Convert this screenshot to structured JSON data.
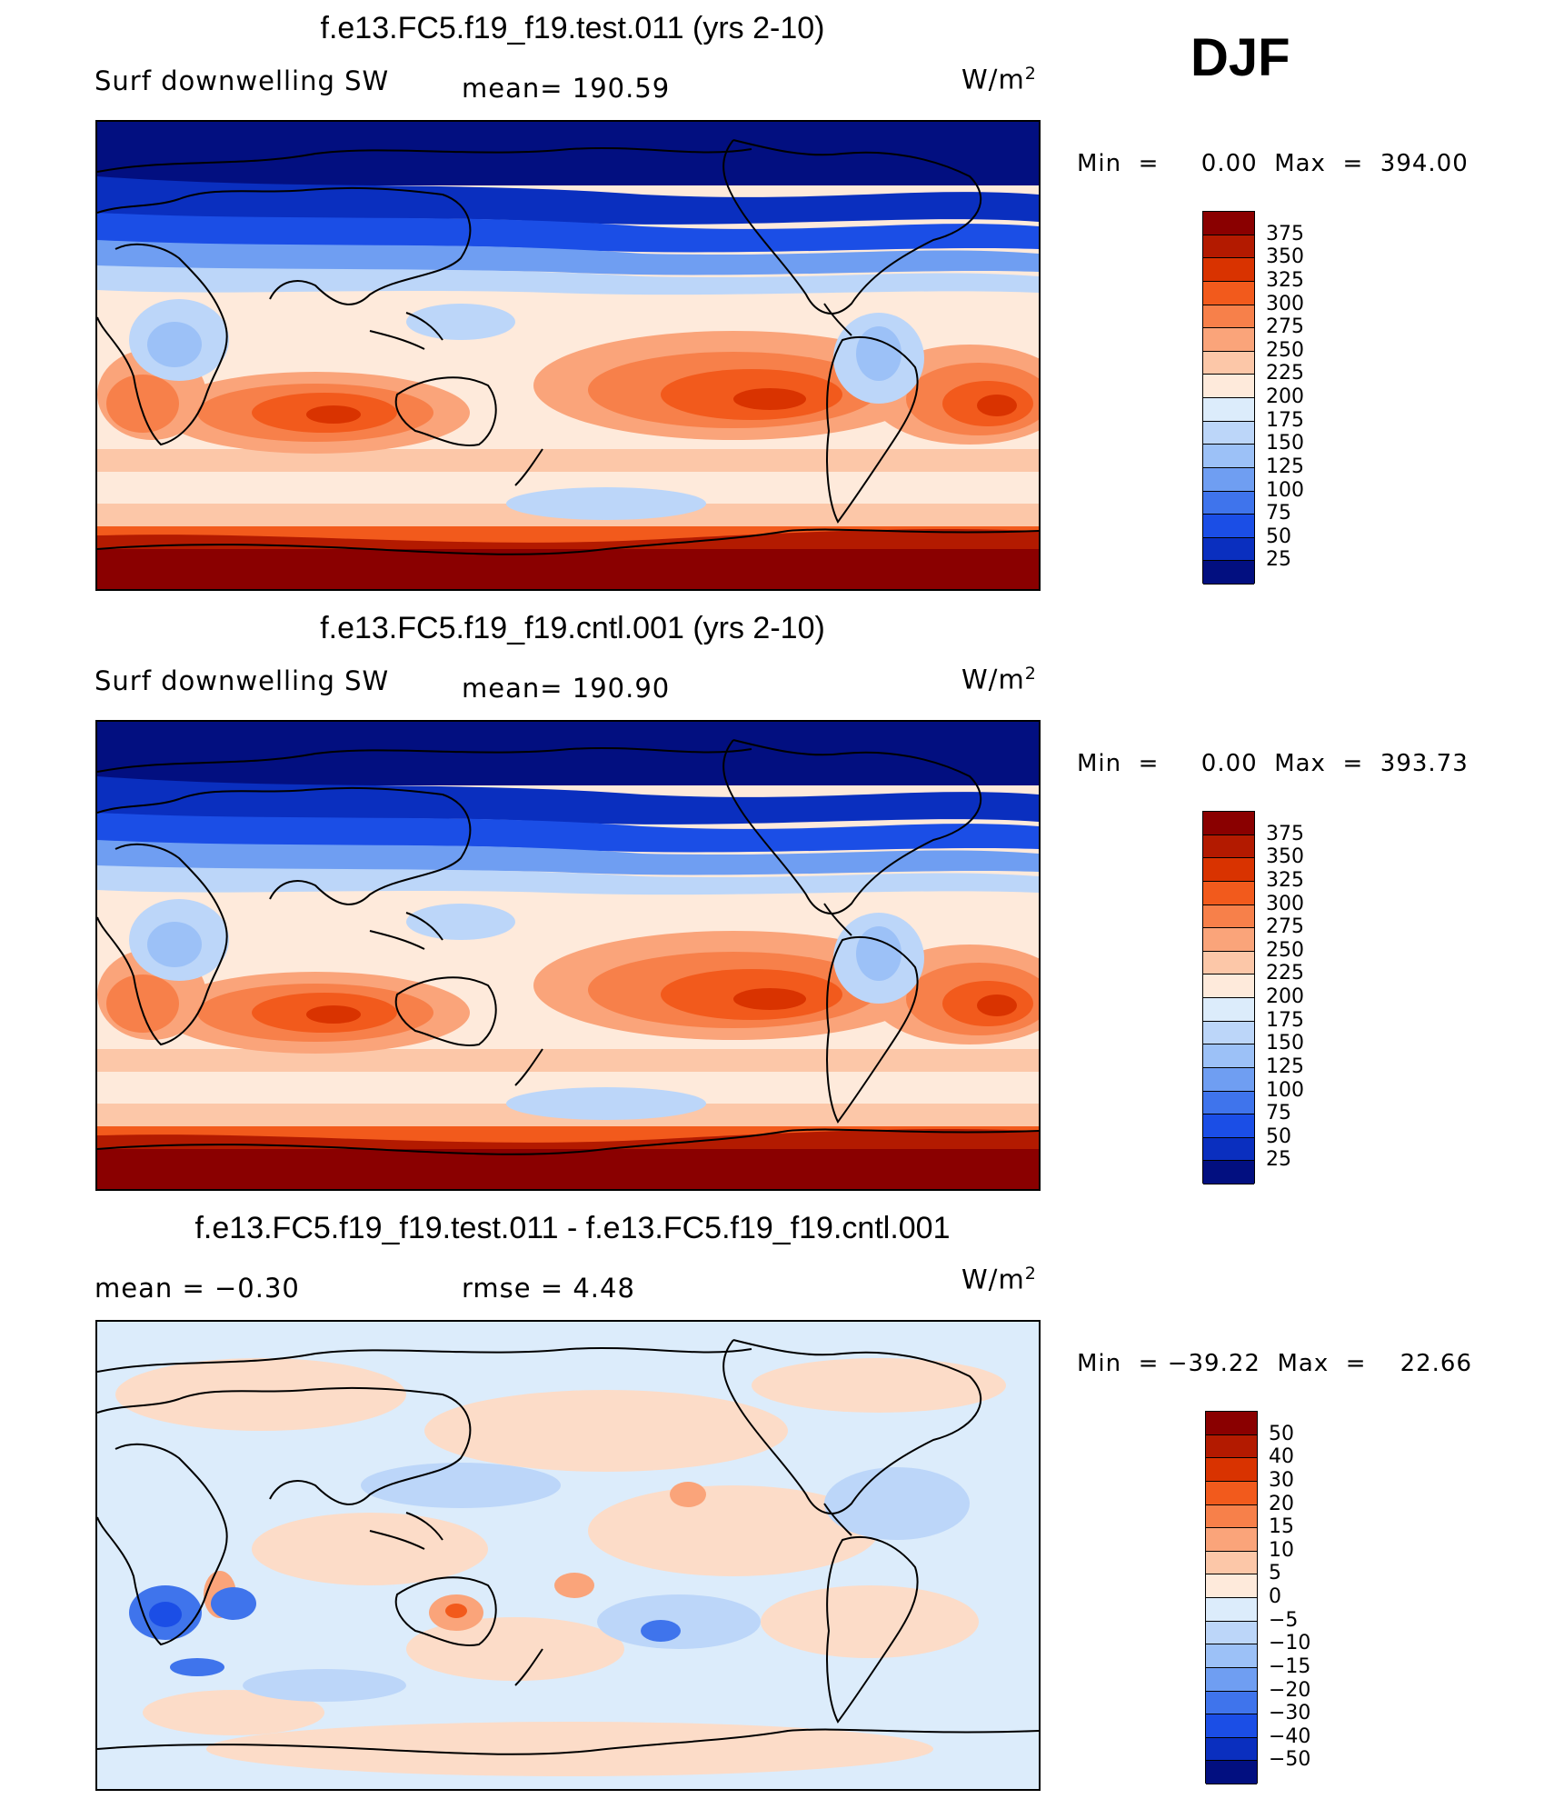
{
  "season": "DJF",
  "units": {
    "base": "W/m",
    "sup": "2"
  },
  "panels": [
    {
      "title": "f.e13.FC5.f19_f19.test.011 (yrs 2-10)",
      "left_label": "Surf  downwelling  SW",
      "mid_label": "mean=  190.59",
      "minmax": "Min  =     0.00  Max  =  394.00"
    },
    {
      "title": "f.e13.FC5.f19_f19.cntl.001 (yrs 2-10)",
      "left_label": "Surf  downwelling  SW",
      "mid_label": "mean=  190.90",
      "minmax": "Min  =     0.00  Max  =  393.73"
    },
    {
      "title": "f.e13.FC5.f19_f19.test.011 - f.e13.FC5.f19_f19.cntl.001",
      "left_label": "mean  =    −0.30",
      "mid_label": "rmse  =     4.48",
      "minmax": "Min  = −39.22  Max  =    22.66"
    }
  ],
  "colorbars": [
    {
      "labels": [
        "375",
        "350",
        "325",
        "300",
        "275",
        "250",
        "225",
        "200",
        "175",
        "150",
        "125",
        "100",
        "75",
        "50",
        "25"
      ],
      "colors": [
        "#8a0000",
        "#b31a00",
        "#d93300",
        "#f25a1c",
        "#f7804a",
        "#faa47a",
        "#fcc7a8",
        "#feeadb",
        "#dcecfb",
        "#bcd6f9",
        "#9cc1f7",
        "#6f9ef2",
        "#3f74ec",
        "#1b4ee6",
        "#0a2fbf",
        "#020f80"
      ]
    },
    {
      "labels": [
        "375",
        "350",
        "325",
        "300",
        "275",
        "250",
        "225",
        "200",
        "175",
        "150",
        "125",
        "100",
        "75",
        "50",
        "25"
      ],
      "colors": [
        "#8a0000",
        "#b31a00",
        "#d93300",
        "#f25a1c",
        "#f7804a",
        "#faa47a",
        "#fcc7a8",
        "#feeadb",
        "#dcecfb",
        "#bcd6f9",
        "#9cc1f7",
        "#6f9ef2",
        "#3f74ec",
        "#1b4ee6",
        "#0a2fbf",
        "#020f80"
      ]
    },
    {
      "labels": [
        "50",
        "40",
        "30",
        "20",
        "15",
        "10",
        "5",
        "0",
        "−5",
        "−10",
        "−15",
        "−20",
        "−30",
        "−40",
        "−50"
      ],
      "colors": [
        "#8a0000",
        "#b31a00",
        "#d93300",
        "#f25a1c",
        "#f7804a",
        "#faa47a",
        "#fcc7a8",
        "#feeadb",
        "#dcecfb",
        "#bcd6f9",
        "#9cc1f7",
        "#6f9ef2",
        "#3f74ec",
        "#1b4ee6",
        "#0a2fbf",
        "#020f80"
      ]
    }
  ]
}
